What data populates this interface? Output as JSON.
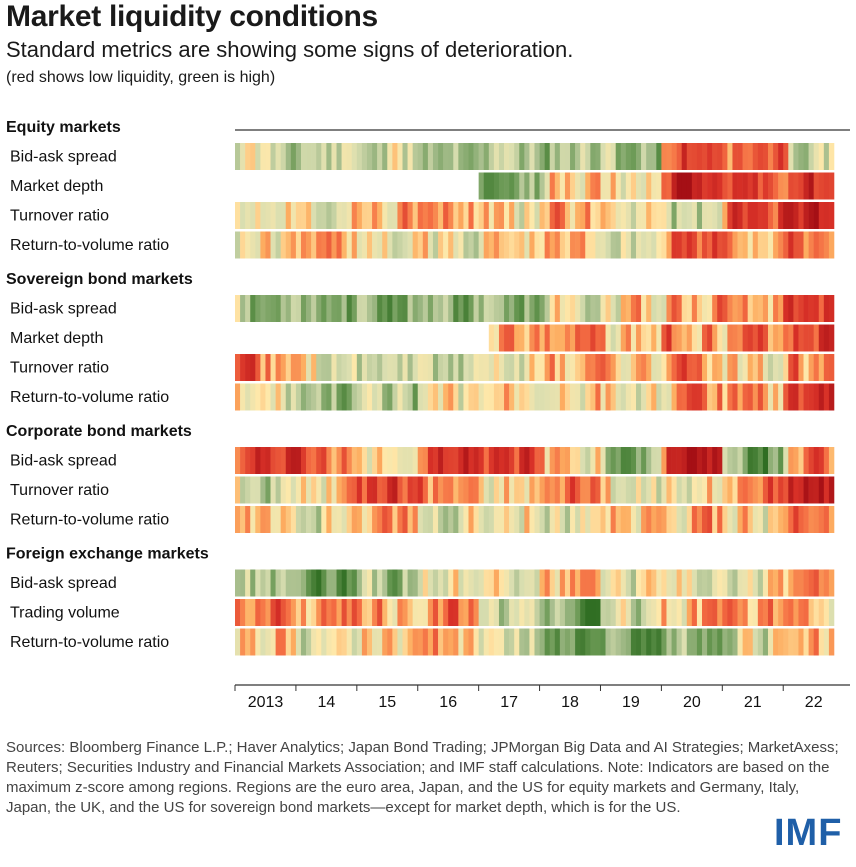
{
  "title": "Market liquidity conditions",
  "subtitle": "Standard metrics are showing some signs of deterioration.",
  "note": "(red shows low liquidity, green is high)",
  "chart_data": {
    "type": "heatmap",
    "color_scale": {
      "low_liquidity": "#b2182b",
      "high_liquidity": "#3a7d2c",
      "neutral": "#fee8b0"
    },
    "x_axis": {
      "start_year": 2013,
      "end_year": 2022,
      "tick_labels": [
        "2013",
        "14",
        "15",
        "16",
        "17",
        "18",
        "19",
        "20",
        "21",
        "22"
      ]
    },
    "sections": [
      {
        "name": "Equity markets",
        "rows": [
          {
            "label": "Bid-ask spread",
            "start": 2013.0,
            "seed": 11,
            "base": [
              0.25,
              0.35,
              0.3,
              0.3,
              0.4,
              0.45,
              0.5,
              -0.6,
              -0.3,
              0.2
            ]
          },
          {
            "label": "Market depth",
            "start": 2017.0,
            "seed": 23,
            "base": [
              0,
              0,
              0,
              0,
              0.6,
              -0.2,
              0.1,
              -0.8,
              -0.5,
              -0.6
            ]
          },
          {
            "label": "Turnover ratio",
            "start": 2013.0,
            "seed": 37,
            "base": [
              -0.1,
              0.0,
              -0.2,
              -0.1,
              0.0,
              -0.1,
              0.0,
              0.4,
              -0.5,
              -0.6
            ]
          },
          {
            "label": "Return-to-volume ratio",
            "start": 2013.0,
            "seed": 41,
            "base": [
              0.1,
              -0.2,
              0.2,
              0.1,
              0.0,
              -0.1,
              0.1,
              -0.4,
              -0.2,
              -0.3
            ]
          }
        ]
      },
      {
        "name": "Sovereign bond markets",
        "rows": [
          {
            "label": "Bid-ask spread",
            "start": 2013.0,
            "seed": 53,
            "base": [
              0.6,
              0.7,
              0.5,
              0.6,
              0.5,
              0.1,
              0.0,
              -0.2,
              -0.1,
              -0.5
            ]
          },
          {
            "label": "Market depth",
            "start": 2017.1,
            "seed": 67,
            "base": [
              0,
              0,
              0,
              0,
              -0.2,
              -0.1,
              0.0,
              -0.3,
              -0.2,
              -0.6
            ]
          },
          {
            "label": "Turnover ratio",
            "start": 2013.0,
            "seed": 71,
            "base": [
              -0.2,
              0.2,
              0.3,
              0.3,
              0.1,
              -0.1,
              0.0,
              -0.2,
              0.0,
              -0.3
            ]
          },
          {
            "label": "Return-to-volume ratio",
            "start": 2013.0,
            "seed": 83,
            "base": [
              0.2,
              0.5,
              0.5,
              0.2,
              0.0,
              -0.1,
              0.1,
              -0.2,
              -0.1,
              -0.6
            ]
          }
        ]
      },
      {
        "name": "Corporate bond markets",
        "rows": [
          {
            "label": "Bid-ask spread",
            "start": 2013.0,
            "seed": 97,
            "base": [
              -0.7,
              -0.3,
              0.3,
              -0.7,
              -0.5,
              0.0,
              0.6,
              -0.7,
              0.7,
              -0.3
            ]
          },
          {
            "label": "Turnover ratio",
            "start": 2013.0,
            "seed": 101,
            "base": [
              0.3,
              0.0,
              -0.5,
              -0.2,
              0.0,
              -0.3,
              0.2,
              0.1,
              -0.3,
              -0.7
            ]
          },
          {
            "label": "Return-to-volume ratio",
            "start": 2013.0,
            "seed": 113,
            "base": [
              0.1,
              0.2,
              -0.1,
              0.1,
              0.0,
              0.1,
              0.0,
              -0.1,
              0.1,
              -0.2
            ]
          }
        ]
      },
      {
        "name": "Foreign exchange markets",
        "rows": [
          {
            "label": "Bid-ask spread",
            "start": 2013.0,
            "seed": 127,
            "base": [
              0.4,
              0.6,
              0.4,
              0.1,
              0.1,
              0.0,
              0.2,
              0.0,
              0.1,
              -0.1
            ]
          },
          {
            "label": "Trading volume",
            "start": 2013.0,
            "seed": 131,
            "base": [
              -0.4,
              -0.2,
              -0.1,
              -0.3,
              0.5,
              0.6,
              0.2,
              -0.1,
              -0.2,
              0.1
            ]
          },
          {
            "label": "Return-to-volume ratio",
            "start": 2013.0,
            "seed": 139,
            "base": [
              -0.1,
              0.3,
              0.0,
              -0.1,
              0.2,
              0.8,
              0.6,
              0.4,
              0.2,
              -0.1
            ]
          }
        ]
      }
    ]
  },
  "sources": "Sources: Bloomberg Finance L.P.; Haver Analytics; Japan Bond Trading; JPMorgan Big Data and AI Strategies; MarketAxess; Reuters; Securities Industry and Financial Markets Association; and IMF staff calculations. Note: Indicators are based on the maximum z-score among regions. Regions are the euro area, Japan, and the US for equity markets and Germany, Italy, Japan, the UK, and the US for sovereign bond markets—except for market depth, which is for the US.",
  "logo": "IMF"
}
